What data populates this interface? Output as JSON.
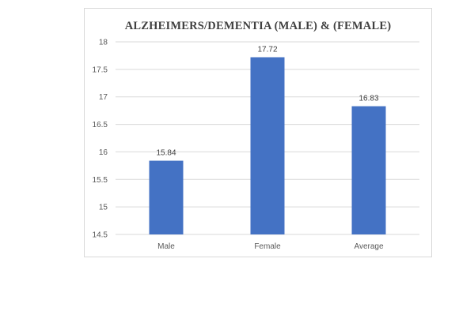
{
  "chart_data": {
    "type": "bar",
    "title": "ALZHEIMERS/DEMENTIA (MALE) & (FEMALE)",
    "categories": [
      "Male",
      "Female",
      "Average"
    ],
    "values": [
      15.84,
      17.72,
      16.83
    ],
    "data_labels": [
      "15.84",
      "17.72",
      "16.83"
    ],
    "y_ticks": [
      14.5,
      15,
      15.5,
      16,
      16.5,
      17,
      17.5,
      18
    ],
    "y_tick_labels": [
      "14.5",
      "15",
      "15.5",
      "16",
      "16.5",
      "17",
      "17.5",
      "18"
    ],
    "ylim": [
      14.5,
      18
    ],
    "xlabel": "",
    "ylabel": "",
    "grid": true,
    "legend": "none",
    "bar_color": "#4472c4",
    "grid_color": "#d9d9d9"
  }
}
